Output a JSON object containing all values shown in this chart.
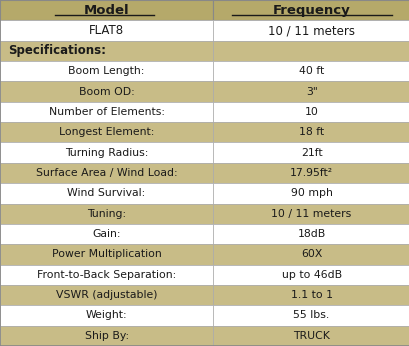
{
  "header": [
    "Model",
    "Frequency"
  ],
  "rows": [
    {
      "label": "FLAT8",
      "value": "10 / 11 meters",
      "type": "model_row"
    },
    {
      "label": "Specifications:",
      "value": "",
      "type": "section_header"
    },
    {
      "label": "Boom Length:",
      "value": "40 ft",
      "type": "white_row"
    },
    {
      "label": "Boom OD:",
      "value": "3\"",
      "type": "tan_row"
    },
    {
      "label": "Number of Elements:",
      "value": "10",
      "type": "white_row"
    },
    {
      "label": "Longest Element:",
      "value": "18 ft",
      "type": "tan_row"
    },
    {
      "label": "Turning Radius:",
      "value": "21ft",
      "type": "white_row"
    },
    {
      "label": "Surface Area / Wind Load:",
      "value": "17.95ft²",
      "type": "tan_row"
    },
    {
      "label": "Wind Survival:",
      "value": "90 mph",
      "type": "white_row"
    },
    {
      "label": "Tuning:",
      "value": "10 / 11 meters",
      "type": "tan_row"
    },
    {
      "label": "Gain:",
      "value": "18dB",
      "type": "white_row"
    },
    {
      "label": "Power Multiplication",
      "value": "60X",
      "type": "tan_row"
    },
    {
      "label": "Front-to-Back Separation:",
      "value": "up to 46dB",
      "type": "white_row"
    },
    {
      "label": "VSWR (adjustable)",
      "value": "1.1 to 1",
      "type": "tan_row"
    },
    {
      "label": "Weight:",
      "value": "55 lbs.",
      "type": "white_row"
    },
    {
      "label": "Ship By:",
      "value": "TRUCK",
      "type": "tan_row"
    }
  ],
  "header_bg": "#b5a96a",
  "tan_bg": "#c8bc87",
  "white_bg": "#ffffff",
  "section_bg": "#c8bc87",
  "model_bg": "#ffffff",
  "header_text_color": "#1a1a1a",
  "row_text_color": "#1a1a1a",
  "border_color": "#999999",
  "fig_bg": "#ffffff",
  "col_split": 0.52,
  "header_underline_model": [
    0.135,
    0.375
  ],
  "header_underline_freq": [
    0.565,
    0.955
  ]
}
